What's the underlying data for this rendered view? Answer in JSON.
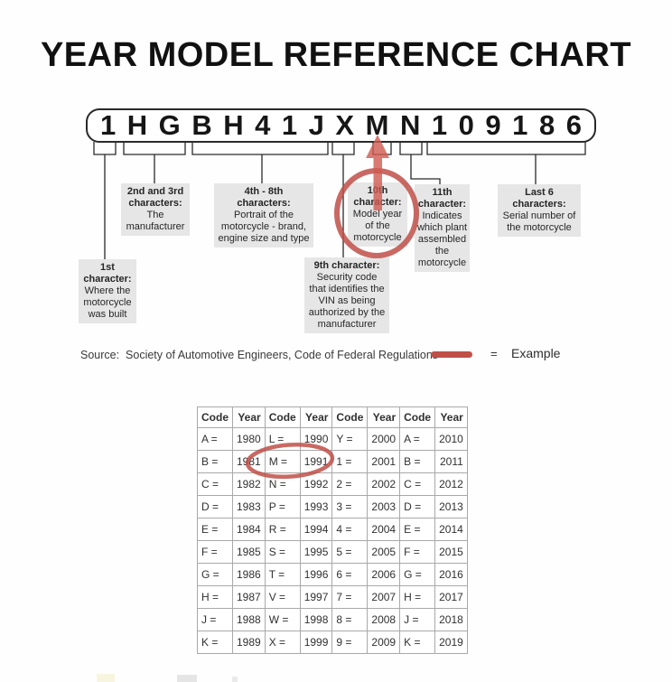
{
  "title": "YEAR MODEL REFERENCE CHART",
  "vin": {
    "characters": [
      "1",
      "H",
      "G",
      "B",
      "H",
      "4",
      "1",
      "J",
      "X",
      "M",
      "N",
      "1",
      "0",
      "9",
      "1",
      "8",
      "6"
    ]
  },
  "notes": [
    {
      "header": "1st\ncharacter:",
      "body": "Where the\nmotorcycle\nwas built"
    },
    {
      "header": "2nd and 3rd\ncharacters:",
      "body": "The\nmanufacturer"
    },
    {
      "header": "4th - 8th\ncharacters:",
      "body": "Portrait of the\nmotorcycle - brand,\nengine size and type"
    },
    {
      "header": "9th character:",
      "body": "Security code\nthat identifies the\nVIN as being\nauthorized by the\nmanufacturer"
    },
    {
      "header": "10th\ncharacter:",
      "body": "Model year\nof the\nmotorcycle"
    },
    {
      "header": "11th\ncharacter:",
      "body": "Indicates\nwhich plant\nassembled\nthe\nmotorcycle"
    },
    {
      "header": "Last 6\ncharacters:",
      "body": "Serial number of\nthe motorcycle"
    }
  ],
  "source_line": "Source:  Society of Automotive Engineers, Code of Federal Regulations",
  "legend": {
    "equals": "=",
    "label": "Example"
  },
  "year_table": {
    "headers": [
      "Code",
      "Year",
      "Code",
      "Year",
      "Code",
      "Year",
      "Code",
      "Year"
    ],
    "rows": [
      [
        "A =",
        "1980",
        "L =",
        "1990",
        "Y =",
        "2000",
        "A =",
        "2010"
      ],
      [
        "B =",
        "1981",
        "M =",
        "1991",
        "1 =",
        "2001",
        "B =",
        "2011"
      ],
      [
        "C =",
        "1982",
        "N =",
        "1992",
        "2 =",
        "2002",
        "C =",
        "2012"
      ],
      [
        "D =",
        "1983",
        "P =",
        "1993",
        "3 =",
        "2003",
        "D =",
        "2013"
      ],
      [
        "E =",
        "1984",
        "R =",
        "1994",
        "4 =",
        "2004",
        "E =",
        "2014"
      ],
      [
        "F =",
        "1985",
        "S =",
        "1995",
        "5 =",
        "2005",
        "F =",
        "2015"
      ],
      [
        "G =",
        "1986",
        "T =",
        "1996",
        "6 =",
        "2006",
        "G =",
        "2016"
      ],
      [
        "H =",
        "1987",
        "V =",
        "1997",
        "7 =",
        "2007",
        "H =",
        "2017"
      ],
      [
        "J =",
        "1988",
        "W =",
        "1998",
        "8 =",
        "2008",
        "J =",
        "2018"
      ],
      [
        "K =",
        "1989",
        "X =",
        "1999",
        "9 =",
        "2009",
        "K =",
        "2019"
      ]
    ],
    "highlight": {
      "code": "M =",
      "year": "1991"
    }
  },
  "colors": {
    "accent_red": "#bf4f48",
    "arrow_red": "#cf5a50",
    "note_bg": "#e6e6e6",
    "line": "#2a2a2a",
    "table_border": "#a9a9a9"
  }
}
